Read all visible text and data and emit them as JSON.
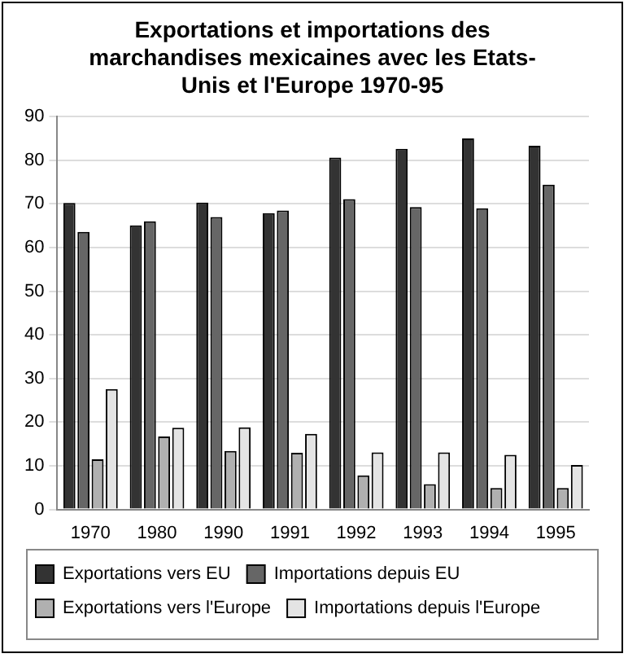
{
  "chart_data": {
    "type": "bar",
    "title": "Exportations et importations des marchandises mexicaines avec les Etats-Unis et l'Europe 1970-95",
    "categories": [
      "1970",
      "1980",
      "1990",
      "1991",
      "1992",
      "1993",
      "1994",
      "1995"
    ],
    "series": [
      {
        "name": "Exportations vers EU",
        "color": "#333333",
        "values": [
          70.2,
          65.1,
          70.3,
          67.9,
          80.6,
          82.6,
          85.0,
          83.3
        ]
      },
      {
        "name": "Importations depuis EU",
        "color": "#666666",
        "values": [
          63.6,
          66.0,
          67.0,
          68.5,
          71.1,
          69.3,
          69.0,
          74.4
        ]
      },
      {
        "name": "Exportations vers l'Europe",
        "color": "#b0b0b0",
        "values": [
          11.5,
          16.7,
          13.4,
          13.0,
          7.8,
          5.8,
          4.9,
          4.9
        ]
      },
      {
        "name": "Importations depuis l'Europe",
        "color": "#e4e4e4",
        "values": [
          27.6,
          18.7,
          18.8,
          17.3,
          13.1,
          13.1,
          12.5,
          10.2
        ]
      }
    ],
    "ylim": [
      0,
      90
    ],
    "yticks": [
      0,
      10,
      20,
      30,
      40,
      50,
      60,
      70,
      80,
      90
    ],
    "grid": "y",
    "legend": "bottom"
  }
}
